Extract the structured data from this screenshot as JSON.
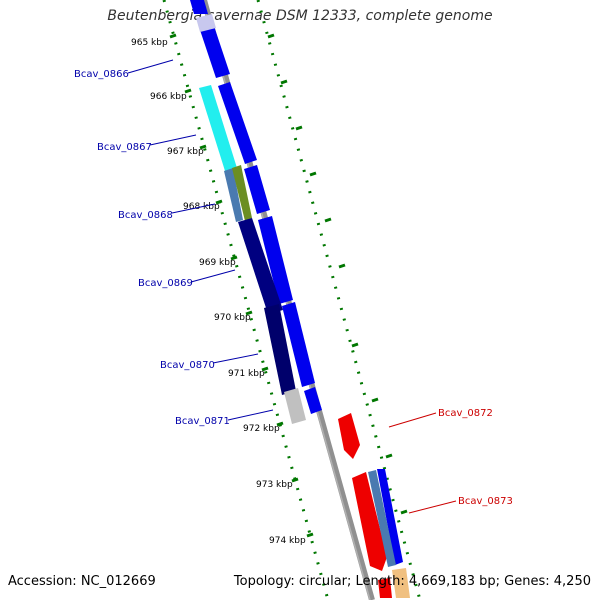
{
  "title": "Beutenbergia cavernae DSM 12333, complete genome",
  "accession": "Accession: NC_012669",
  "topology": "Topology: circular; Length: 4,669,183 bp; Genes: 4,250",
  "colors": {
    "backbone": "#808080",
    "tick": "#007700",
    "gene_blue": "#0000ee",
    "gene_cyan": "#22eeee",
    "gene_olive": "#6b8e23",
    "gene_steel": "#4a7ab0",
    "gene_navy": "#000080",
    "gene_grey": "#c0c0c0",
    "gene_red": "#ee0000",
    "label_left": "#0000aa",
    "label_right": "#cc0000"
  },
  "kbp_labels": [
    "965 kbp",
    "966 kbp",
    "967 kbp",
    "968 kbp",
    "969 kbp",
    "970 kbp",
    "971 kbp",
    "972 kbp",
    "973 kbp",
    "974 kbp"
  ],
  "genes_left": [
    {
      "name": "Bcav_0866"
    },
    {
      "name": "Bcav_0867"
    },
    {
      "name": "Bcav_0868"
    },
    {
      "name": "Bcav_0869"
    },
    {
      "name": "Bcav_0870"
    },
    {
      "name": "Bcav_0871"
    }
  ],
  "genes_right": [
    {
      "name": "Bcav_0872"
    },
    {
      "name": "Bcav_0873"
    }
  ]
}
